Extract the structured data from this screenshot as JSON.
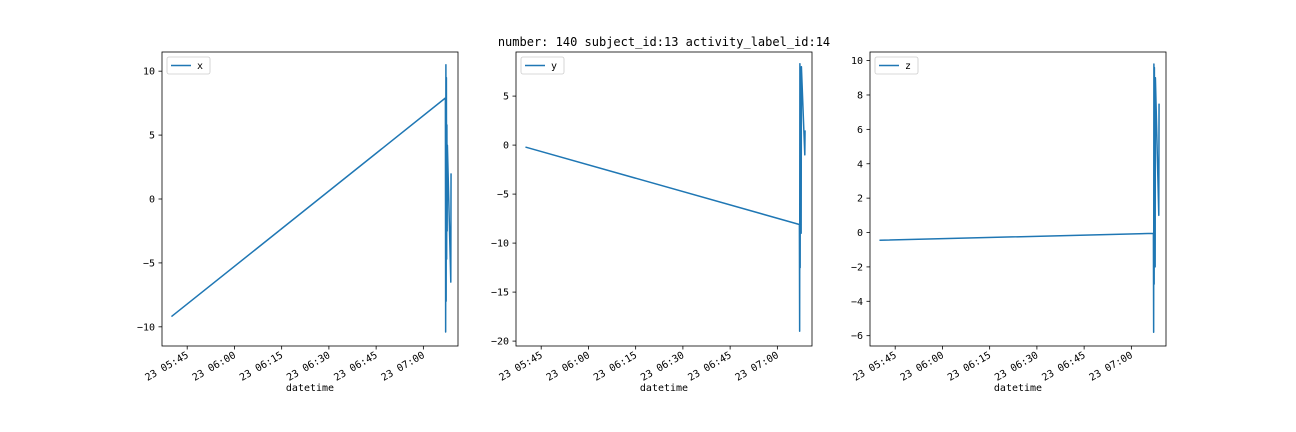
{
  "figure": {
    "suptitle": "number: 140 subject_id:13 activity_label_id:14",
    "line_color": "#1f77b4"
  },
  "chart_data": [
    {
      "type": "line",
      "title": "",
      "xlabel": "datetime",
      "ylabel": "",
      "legend": "top-left",
      "grid": false,
      "series": [
        {
          "name": "x",
          "x": [
            "23 05:40",
            "23 07:07",
            "23 07:07",
            "23 07:07",
            "23 07:07",
            "23 07:07",
            "23 07:07",
            "23 07:07",
            "23 07:07",
            "23 07:07",
            "23 07:08",
            "23 07:08"
          ],
          "y": [
            -9.2,
            7.9,
            -10.4,
            10.5,
            -8.0,
            9.5,
            -4.7,
            5.8,
            -2.5,
            4.2,
            -6.5,
            2.0
          ]
        }
      ],
      "xlim": [
        "23 05:37",
        "23 07:11"
      ],
      "ylim": [
        -11.5,
        11.5
      ],
      "xticks": [
        "23 05:45",
        "23 06:00",
        "23 06:15",
        "23 06:30",
        "23 06:45",
        "23 07:00"
      ],
      "yticks": [
        -10,
        -5,
        0,
        5,
        10
      ]
    },
    {
      "type": "line",
      "title": "",
      "xlabel": "datetime",
      "ylabel": "",
      "legend": "top-left",
      "grid": false,
      "series": [
        {
          "name": "y",
          "x": [
            "23 05:40",
            "23 07:07",
            "23 07:07",
            "23 07:07",
            "23 07:07",
            "23 07:07",
            "23 07:07",
            "23 07:07",
            "23 07:07",
            "23 07:07",
            "23 07:08",
            "23 07:08"
          ],
          "y": [
            -0.2,
            -8.1,
            -19.0,
            8.3,
            -12.5,
            6.0,
            -6.0,
            2.5,
            -9.0,
            8.0,
            -1.0,
            1.5
          ]
        }
      ],
      "xlim": [
        "23 05:37",
        "23 07:11"
      ],
      "ylim": [
        -20.5,
        9.5
      ],
      "xticks": [
        "23 05:45",
        "23 06:00",
        "23 06:15",
        "23 06:30",
        "23 06:45",
        "23 07:00"
      ],
      "yticks": [
        -20,
        -15,
        -10,
        -5,
        0,
        5
      ]
    },
    {
      "type": "line",
      "title": "",
      "xlabel": "datetime",
      "ylabel": "",
      "legend": "top-left",
      "grid": false,
      "series": [
        {
          "name": "z",
          "x": [
            "23 05:40",
            "23 07:07",
            "23 07:07",
            "23 07:07",
            "23 07:07",
            "23 07:07",
            "23 07:07",
            "23 07:07",
            "23 07:07",
            "23 07:07",
            "23 07:08",
            "23 07:08"
          ],
          "y": [
            -0.45,
            -0.05,
            -5.8,
            9.8,
            -3.0,
            9.6,
            0.5,
            7.2,
            -2.0,
            9.0,
            1.0,
            7.5
          ]
        }
      ],
      "xlim": [
        "23 05:37",
        "23 07:11"
      ],
      "ylim": [
        -6.6,
        10.5
      ],
      "xticks": [
        "23 05:45",
        "23 06:00",
        "23 06:15",
        "23 06:30",
        "23 06:45",
        "23 07:00"
      ],
      "yticks": [
        -6,
        -4,
        -2,
        0,
        2,
        4,
        6,
        8,
        10
      ]
    }
  ]
}
